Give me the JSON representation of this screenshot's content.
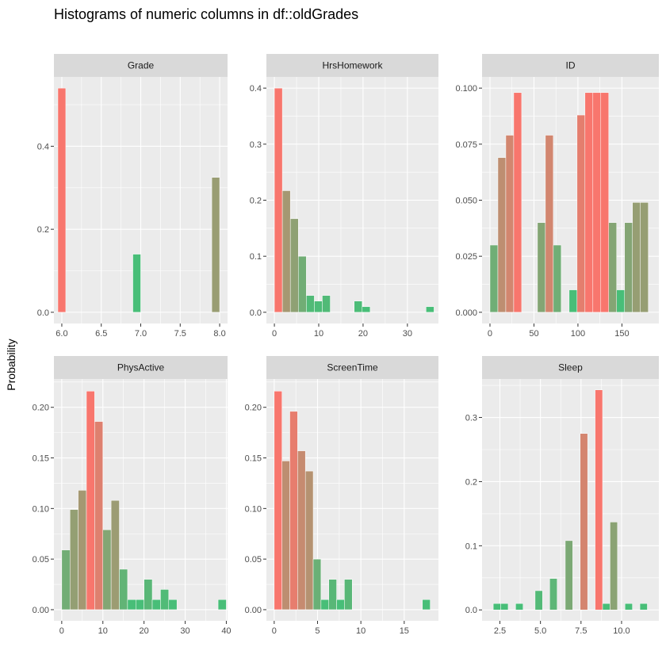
{
  "page": {
    "title": "Histograms of numeric columns in df::oldGrades",
    "ylabel": "Probability"
  },
  "colors": {
    "panel_bg": "#EBEBEB",
    "strip_bg": "#D9D9D9",
    "grid_major": "#FFFFFF",
    "axis_text": "#4D4D4D",
    "low": "#48BE78",
    "high": "#F8766D"
  },
  "chart_data": [
    {
      "type": "bar",
      "title": "Grade",
      "xlim": [
        5.9,
        8.1
      ],
      "ylim": [
        -0.027,
        0.567
      ],
      "xticks": [
        6.0,
        6.5,
        7.0,
        7.5,
        8.0
      ],
      "xtick_labels": [
        "6.0",
        "6.5",
        "7.0",
        "7.5",
        "8.0"
      ],
      "yticks": [
        0,
        0.2,
        0.4
      ],
      "ytick_labels": [
        "0.0",
        "0.2",
        "0.4"
      ],
      "bin_width": 0.1,
      "bins": [
        {
          "x": 6.0,
          "y": 0.54
        },
        {
          "x": 6.95,
          "y": 0.14
        },
        {
          "x": 7.95,
          "y": 0.325
        }
      ]
    },
    {
      "type": "bar",
      "title": "HrsHomework",
      "xlim": [
        -1.8,
        37
      ],
      "ylim": [
        -0.02,
        0.42
      ],
      "xticks": [
        0,
        10,
        20,
        30
      ],
      "xtick_labels": [
        "0",
        "10",
        "20",
        "30"
      ],
      "yticks": [
        0,
        0.1,
        0.2,
        0.3,
        0.4
      ],
      "ytick_labels": [
        "0.0",
        "0.1",
        "0.2",
        "0.3",
        "0.4"
      ],
      "bin_width": 1.8,
      "bins": [
        {
          "x": 0.9,
          "y": 0.4
        },
        {
          "x": 2.7,
          "y": 0.217
        },
        {
          "x": 4.5,
          "y": 0.167
        },
        {
          "x": 6.3,
          "y": 0.1
        },
        {
          "x": 8.1,
          "y": 0.03
        },
        {
          "x": 9.9,
          "y": 0.02
        },
        {
          "x": 11.7,
          "y": 0.03
        },
        {
          "x": 18.9,
          "y": 0.02
        },
        {
          "x": 20.7,
          "y": 0.01
        },
        {
          "x": 35.1,
          "y": 0.01
        }
      ]
    },
    {
      "type": "bar",
      "title": "ID",
      "xlim": [
        -9,
        192
      ],
      "ylim": [
        -0.005,
        0.105
      ],
      "xticks": [
        0,
        50,
        100,
        150
      ],
      "xtick_labels": [
        "0",
        "50",
        "100",
        "150"
      ],
      "yticks": [
        0,
        0.025,
        0.05,
        0.075,
        0.1
      ],
      "ytick_labels": [
        "0.000",
        "0.025",
        "0.050",
        "0.075",
        "0.100"
      ],
      "bin_width": 9,
      "bins": [
        {
          "x": 4.5,
          "y": 0.03
        },
        {
          "x": 13.5,
          "y": 0.069
        },
        {
          "x": 22.5,
          "y": 0.079
        },
        {
          "x": 31.5,
          "y": 0.098
        },
        {
          "x": 58.5,
          "y": 0.04
        },
        {
          "x": 67.5,
          "y": 0.079
        },
        {
          "x": 76.5,
          "y": 0.03
        },
        {
          "x": 94.5,
          "y": 0.01
        },
        {
          "x": 103.5,
          "y": 0.088
        },
        {
          "x": 112.5,
          "y": 0.098
        },
        {
          "x": 121.5,
          "y": 0.098
        },
        {
          "x": 130.5,
          "y": 0.098
        },
        {
          "x": 139.5,
          "y": 0.04
        },
        {
          "x": 148.5,
          "y": 0.01
        },
        {
          "x": 157.5,
          "y": 0.04
        },
        {
          "x": 166.5,
          "y": 0.049
        },
        {
          "x": 175.5,
          "y": 0.049
        }
      ]
    },
    {
      "type": "bar",
      "title": "PhysActive",
      "xlim": [
        -1.9,
        40.3
      ],
      "ylim": [
        -0.011,
        0.228
      ],
      "xticks": [
        0,
        10,
        20,
        30,
        40
      ],
      "xtick_labels": [
        "0",
        "10",
        "20",
        "30",
        "40"
      ],
      "yticks": [
        0,
        0.05,
        0.1,
        0.15,
        0.2
      ],
      "ytick_labels": [
        "0.00",
        "0.05",
        "0.10",
        "0.15",
        "0.20"
      ],
      "bin_width": 2,
      "bins": [
        {
          "x": 1,
          "y": 0.059
        },
        {
          "x": 3,
          "y": 0.099
        },
        {
          "x": 5,
          "y": 0.118
        },
        {
          "x": 7,
          "y": 0.216
        },
        {
          "x": 9,
          "y": 0.186
        },
        {
          "x": 11,
          "y": 0.079
        },
        {
          "x": 13,
          "y": 0.108
        },
        {
          "x": 15,
          "y": 0.04
        },
        {
          "x": 17,
          "y": 0.01
        },
        {
          "x": 19,
          "y": 0.01
        },
        {
          "x": 21,
          "y": 0.03
        },
        {
          "x": 23,
          "y": 0.01
        },
        {
          "x": 25,
          "y": 0.02
        },
        {
          "x": 27,
          "y": 0.01
        },
        {
          "x": 39,
          "y": 0.01
        }
      ]
    },
    {
      "type": "bar",
      "title": "ScreenTime",
      "xlim": [
        -0.9,
        18.95
      ],
      "ylim": [
        -0.011,
        0.228
      ],
      "xticks": [
        0,
        5,
        10,
        15
      ],
      "xtick_labels": [
        "0",
        "5",
        "10",
        "15"
      ],
      "yticks": [
        0,
        0.05,
        0.1,
        0.15,
        0.2
      ],
      "ytick_labels": [
        "0.00",
        "0.05",
        "0.10",
        "0.15",
        "0.20"
      ],
      "bin_width": 0.9,
      "bins": [
        {
          "x": 0.45,
          "y": 0.216
        },
        {
          "x": 1.35,
          "y": 0.147
        },
        {
          "x": 2.25,
          "y": 0.196
        },
        {
          "x": 3.15,
          "y": 0.157
        },
        {
          "x": 4.05,
          "y": 0.137
        },
        {
          "x": 4.95,
          "y": 0.05
        },
        {
          "x": 5.85,
          "y": 0.01
        },
        {
          "x": 6.75,
          "y": 0.03
        },
        {
          "x": 7.65,
          "y": 0.01
        },
        {
          "x": 8.55,
          "y": 0.03
        },
        {
          "x": 17.55,
          "y": 0.01
        }
      ]
    },
    {
      "type": "bar",
      "title": "Sleep",
      "xlim": [
        1.4,
        12.3
      ],
      "ylim": [
        -0.017,
        0.36
      ],
      "xticks": [
        2.5,
        5.0,
        7.5,
        10.0
      ],
      "xtick_labels": [
        "2.5",
        "5.0",
        "7.5",
        "10.0"
      ],
      "yticks": [
        0,
        0.1,
        0.2,
        0.3
      ],
      "ytick_labels": [
        "0.0",
        "0.1",
        "0.2",
        "0.3"
      ],
      "bin_width": 0.46,
      "bins": [
        {
          "x": 2.32,
          "y": 0.01
        },
        {
          "x": 2.78,
          "y": 0.01
        },
        {
          "x": 3.7,
          "y": 0.01
        },
        {
          "x": 4.9,
          "y": 0.03
        },
        {
          "x": 5.8,
          "y": 0.049
        },
        {
          "x": 6.76,
          "y": 0.108
        },
        {
          "x": 7.68,
          "y": 0.275
        },
        {
          "x": 8.6,
          "y": 0.343
        },
        {
          "x": 9.06,
          "y": 0.01
        },
        {
          "x": 9.52,
          "y": 0.137
        },
        {
          "x": 10.44,
          "y": 0.01
        },
        {
          "x": 11.36,
          "y": 0.01
        }
      ]
    }
  ]
}
